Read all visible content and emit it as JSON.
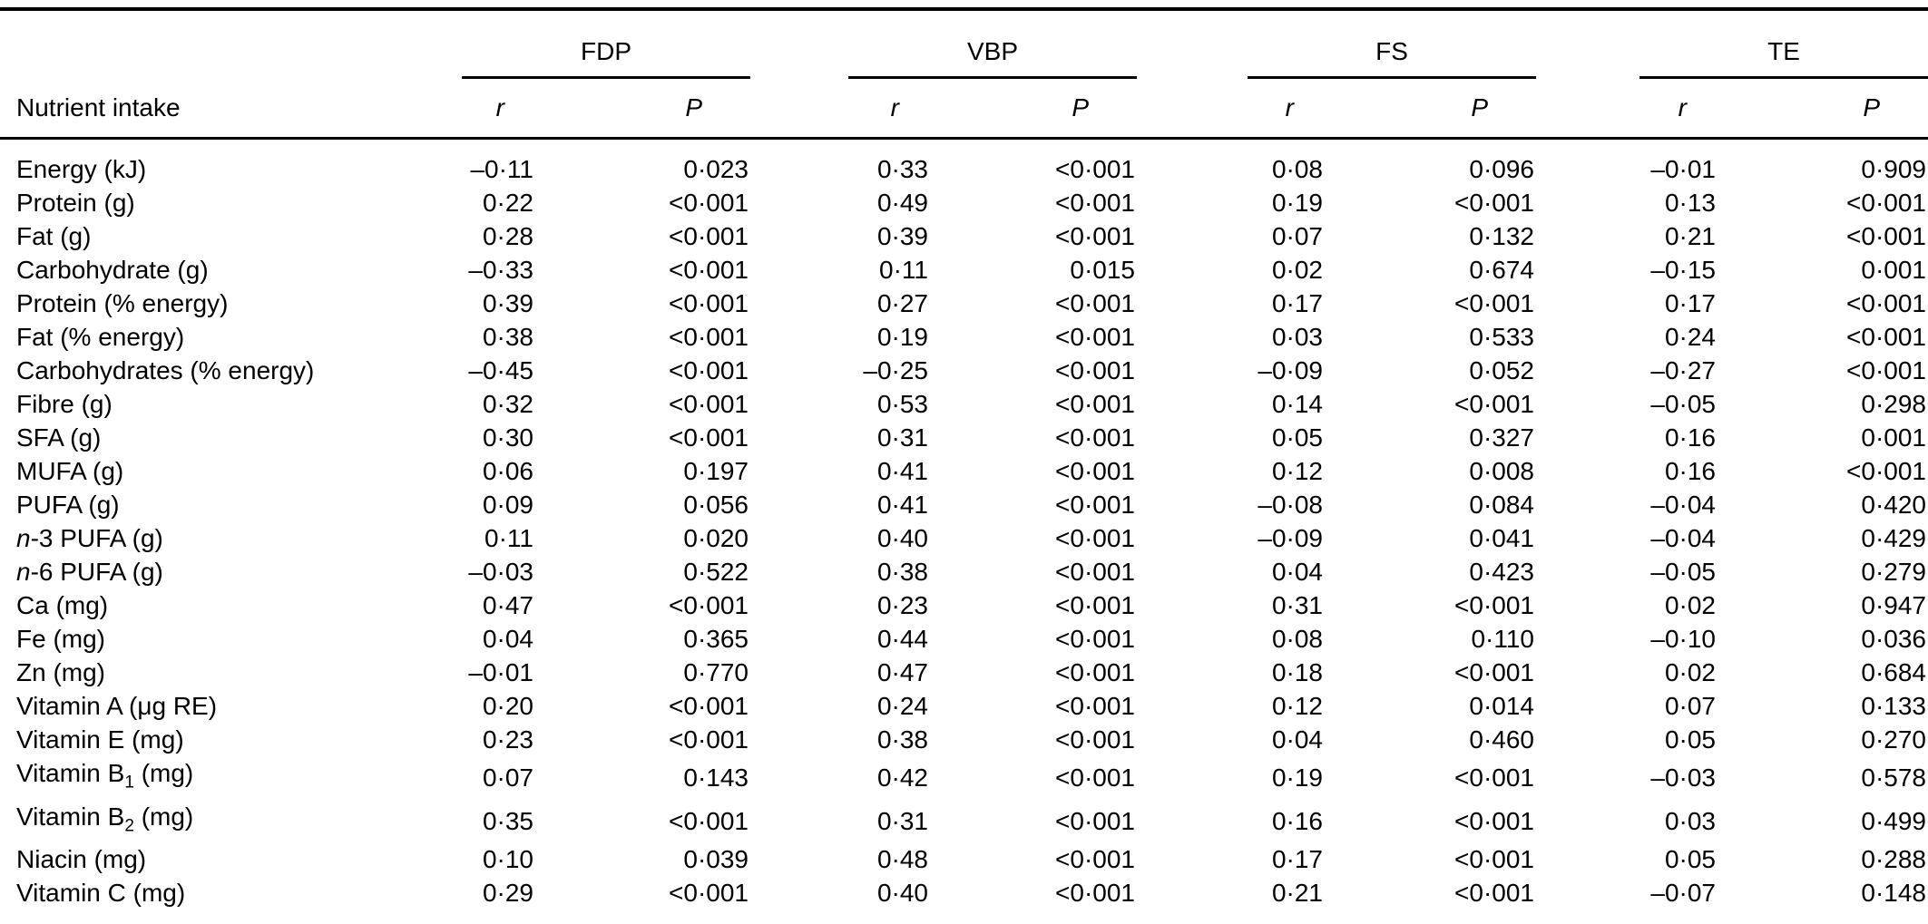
{
  "colors": {
    "text": "#000000",
    "background": "#ffffff",
    "rule": "#000000"
  },
  "table": {
    "column_header": "Nutrient intake",
    "groups": [
      {
        "label": "FDP"
      },
      {
        "label": "VBP"
      },
      {
        "label": "FS"
      },
      {
        "label": "TE"
      }
    ],
    "value_headers": {
      "r": "r",
      "p": "P"
    },
    "rows": [
      {
        "label": "Energy (kJ)",
        "values": [
          "–0·11",
          "0·023",
          "0·33",
          "<0·001",
          "0·08",
          "0·096",
          "–0·01",
          "0·909"
        ]
      },
      {
        "label": "Protein (g)",
        "values": [
          "0·22",
          "<0·001",
          "0·49",
          "<0·001",
          "0·19",
          "<0·001",
          "0·13",
          "<0·001"
        ]
      },
      {
        "label": "Fat (g)",
        "values": [
          "0·28",
          "<0·001",
          "0·39",
          "<0·001",
          "0·07",
          "0·132",
          "0·21",
          "<0·001"
        ]
      },
      {
        "label": "Carbohydrate (g)",
        "values": [
          "–0·33",
          "<0·001",
          "0·11",
          "0·015",
          "0·02",
          "0·674",
          "–0·15",
          "0·001"
        ]
      },
      {
        "label": "Protein (% energy)",
        "values": [
          "0·39",
          "<0·001",
          "0·27",
          "<0·001",
          "0·17",
          "<0·001",
          "0·17",
          "<0·001"
        ]
      },
      {
        "label": "Fat (% energy)",
        "values": [
          "0·38",
          "<0·001",
          "0·19",
          "<0·001",
          "0·03",
          "0·533",
          "0·24",
          "<0·001"
        ]
      },
      {
        "label": "Carbohydrates (% energy)",
        "values": [
          "–0·45",
          "<0·001",
          "–0·25",
          "<0·001",
          "–0·09",
          "0·052",
          "–0·27",
          "<0·001"
        ]
      },
      {
        "label": "Fibre (g)",
        "values": [
          "0·32",
          "<0·001",
          "0·53",
          "<0·001",
          "0·14",
          "<0·001",
          "–0·05",
          "0·298"
        ]
      },
      {
        "label": "SFA (g)",
        "values": [
          "0·30",
          "<0·001",
          "0·31",
          "<0·001",
          "0·05",
          "0·327",
          "0·16",
          "0·001"
        ]
      },
      {
        "label": "MUFA (g)",
        "values": [
          "0·06",
          "0·197",
          "0·41",
          "<0·001",
          "0·12",
          "0·008",
          "0·16",
          "<0·001"
        ]
      },
      {
        "label": "PUFA (g)",
        "values": [
          "0·09",
          "0·056",
          "0·41",
          "<0·001",
          "–0·08",
          "0·084",
          "–0·04",
          "0·420"
        ]
      },
      {
        "label": [
          {
            "t": "n",
            "i": true
          },
          {
            "t": "-3 PUFA (g)"
          }
        ],
        "values": [
          "0·11",
          "0·020",
          "0·40",
          "<0·001",
          "–0·09",
          "0·041",
          "–0·04",
          "0·429"
        ]
      },
      {
        "label": [
          {
            "t": "n",
            "i": true
          },
          {
            "t": "-6 PUFA (g)"
          }
        ],
        "values": [
          "–0·03",
          "0·522",
          "0·38",
          "<0·001",
          "0·04",
          "0·423",
          "–0·05",
          "0·279"
        ]
      },
      {
        "label": "Ca (mg)",
        "values": [
          "0·47",
          "<0·001",
          "0·23",
          "<0·001",
          "0·31",
          "<0·001",
          "0·02",
          "0·947"
        ]
      },
      {
        "label": "Fe (mg)",
        "values": [
          "0·04",
          "0·365",
          "0·44",
          "<0·001",
          "0·08",
          "0·110",
          "–0·10",
          "0·036"
        ]
      },
      {
        "label": "Zn (mg)",
        "values": [
          "–0·01",
          "0·770",
          "0·47",
          "<0·001",
          "0·18",
          "<0·001",
          "0·02",
          "0·684"
        ]
      },
      {
        "label": "Vitamin A (μg RE)",
        "values": [
          "0·20",
          "<0·001",
          "0·24",
          "<0·001",
          "0·12",
          "0·014",
          "0·07",
          "0·133"
        ]
      },
      {
        "label": "Vitamin E (mg)",
        "values": [
          "0·23",
          "<0·001",
          "0·38",
          "<0·001",
          "0·04",
          "0·460",
          "0·05",
          "0·270"
        ]
      },
      {
        "label": [
          {
            "t": "Vitamin B"
          },
          {
            "t": "1",
            "s": true
          },
          {
            "t": " (mg)"
          }
        ],
        "values": [
          "0·07",
          "0·143",
          "0·42",
          "<0·001",
          "0·19",
          "<0·001",
          "–0·03",
          "0·578"
        ]
      },
      {
        "label": [
          {
            "t": "Vitamin B"
          },
          {
            "t": "2",
            "s": true
          },
          {
            "t": " (mg)"
          }
        ],
        "values": [
          "0·35",
          "<0·001",
          "0·31",
          "<0·001",
          "0·16",
          "<0·001",
          "0·03",
          "0·499"
        ]
      },
      {
        "label": "Niacin (mg)",
        "values": [
          "0·10",
          "0·039",
          "0·48",
          "<0·001",
          "0·17",
          "<0·001",
          "0·05",
          "0·288"
        ]
      },
      {
        "label": "Vitamin C (mg)",
        "values": [
          "0·29",
          "<0·001",
          "0·40",
          "<0·001",
          "0·21",
          "<0·001",
          "–0·07",
          "0·148"
        ]
      }
    ]
  }
}
